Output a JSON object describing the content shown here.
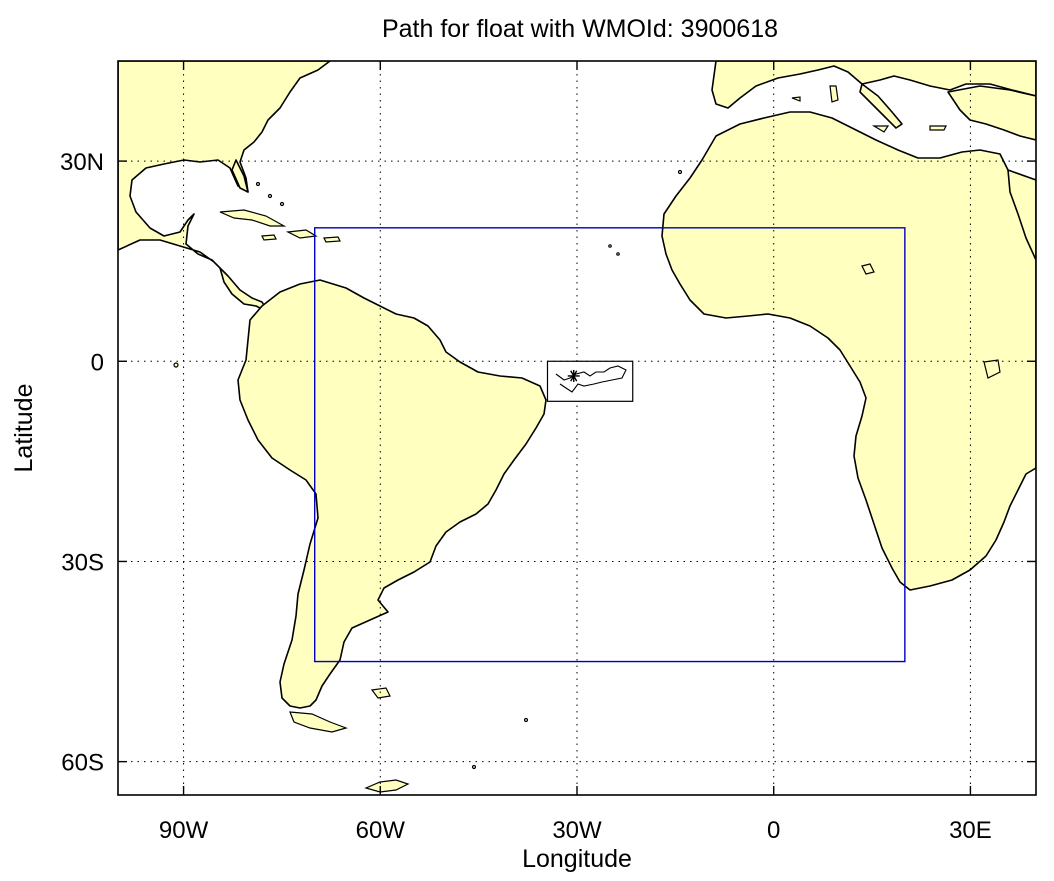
{
  "title": "Path for float with WMOId: 3900618",
  "xlabel": "Longitude",
  "ylabel": "Latitude",
  "map": {
    "projection": "lon-lat",
    "lon_range": [
      -100,
      40
    ],
    "lat_range": [
      -65,
      45
    ],
    "land_color": "#ffffc0",
    "ocean_color": "#ffffff",
    "grid": true,
    "grid_style": "dotted",
    "x_ticks": [
      {
        "value": -90,
        "label": "90W"
      },
      {
        "value": -60,
        "label": "60W"
      },
      {
        "value": -30,
        "label": "30W"
      },
      {
        "value": 0,
        "label": "0"
      },
      {
        "value": 30,
        "label": "30E"
      }
    ],
    "y_ticks": [
      {
        "value": 30,
        "label": "30N"
      },
      {
        "value": 0,
        "label": "0"
      },
      {
        "value": -30,
        "label": "30S"
      },
      {
        "value": -60,
        "label": "60S"
      }
    ],
    "region_box": {
      "lon": [
        -70,
        20
      ],
      "lat": [
        -45,
        20
      ],
      "color": "#0000c0"
    },
    "float_track": {
      "inset_lon": [
        -34.5,
        -21.5
      ],
      "inset_lat": [
        -6,
        0
      ],
      "start_marker": "asterisk",
      "start_point": {
        "lon": -30.5,
        "lat": -2.2
      }
    }
  }
}
